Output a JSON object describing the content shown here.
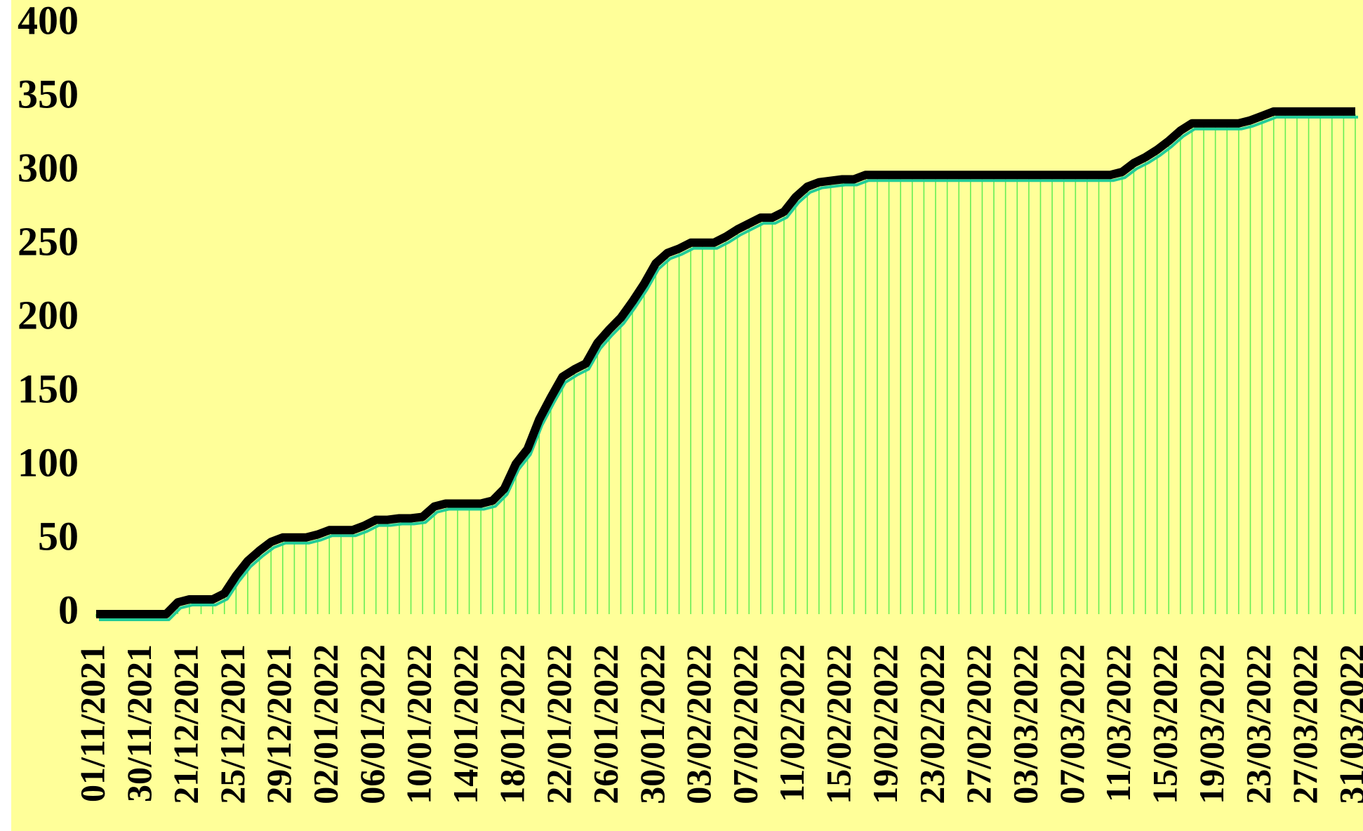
{
  "chart_data": {
    "type": "line",
    "categories": [
      "01/11/2021",
      null,
      null,
      null,
      "30/11/2021",
      null,
      null,
      null,
      "21/12/2021",
      null,
      null,
      null,
      "25/12/2021",
      null,
      null,
      null,
      "29/12/2021",
      null,
      null,
      null,
      "02/01/2022",
      null,
      null,
      null,
      "06/01/2022",
      null,
      null,
      null,
      "10/01/2022",
      null,
      null,
      null,
      "14/01/2022",
      null,
      null,
      null,
      "18/01/2022",
      null,
      null,
      null,
      "22/01/2022",
      null,
      null,
      null,
      "26/01/2022",
      null,
      null,
      null,
      "30/01/2022",
      null,
      null,
      null,
      "03/02/2022",
      null,
      null,
      null,
      "07/02/2022",
      null,
      null,
      null,
      "11/02/2022",
      null,
      null,
      null,
      "15/02/2022",
      null,
      null,
      null,
      "19/02/2022",
      null,
      null,
      null,
      "23/02/2022",
      null,
      null,
      null,
      "27/02/2022",
      null,
      null,
      null,
      "03/03/2022",
      null,
      null,
      null,
      "07/03/2022",
      null,
      null,
      null,
      "11/03/2022",
      null,
      null,
      null,
      "15/03/2022",
      null,
      null,
      null,
      "19/03/2022",
      null,
      null,
      null,
      "23/03/2022",
      null,
      null,
      null,
      "27/03/2022",
      null,
      null,
      null,
      "31/03/2022"
    ],
    "values": [
      0,
      0,
      0,
      0,
      0,
      0,
      0,
      8,
      10,
      10,
      10,
      14,
      26,
      36,
      43,
      49,
      52,
      52,
      52,
      54,
      57,
      57,
      57,
      60,
      64,
      64,
      65,
      65,
      66,
      73,
      75,
      75,
      75,
      75,
      77,
      85,
      102,
      112,
      132,
      147,
      161,
      166,
      170,
      184,
      193,
      201,
      212,
      224,
      238,
      245,
      248,
      252,
      252,
      252,
      256,
      261,
      265,
      269,
      269,
      273,
      283,
      290,
      293,
      294,
      295,
      295,
      298,
      298,
      298,
      298,
      298,
      298,
      298,
      298,
      298,
      298,
      298,
      298,
      298,
      298,
      298,
      298,
      298,
      298,
      298,
      298,
      298,
      298,
      300,
      306,
      310,
      315,
      321,
      328,
      333,
      333,
      333,
      333,
      333,
      335,
      338,
      341,
      341,
      341,
      341,
      341,
      341,
      341,
      341
    ],
    "color": "#000000",
    "background": "#ffff99",
    "ylim": [
      0,
      400
    ],
    "yticks": [
      0,
      50,
      100,
      150,
      200,
      250,
      300,
      350,
      400
    ],
    "grid": false
  }
}
